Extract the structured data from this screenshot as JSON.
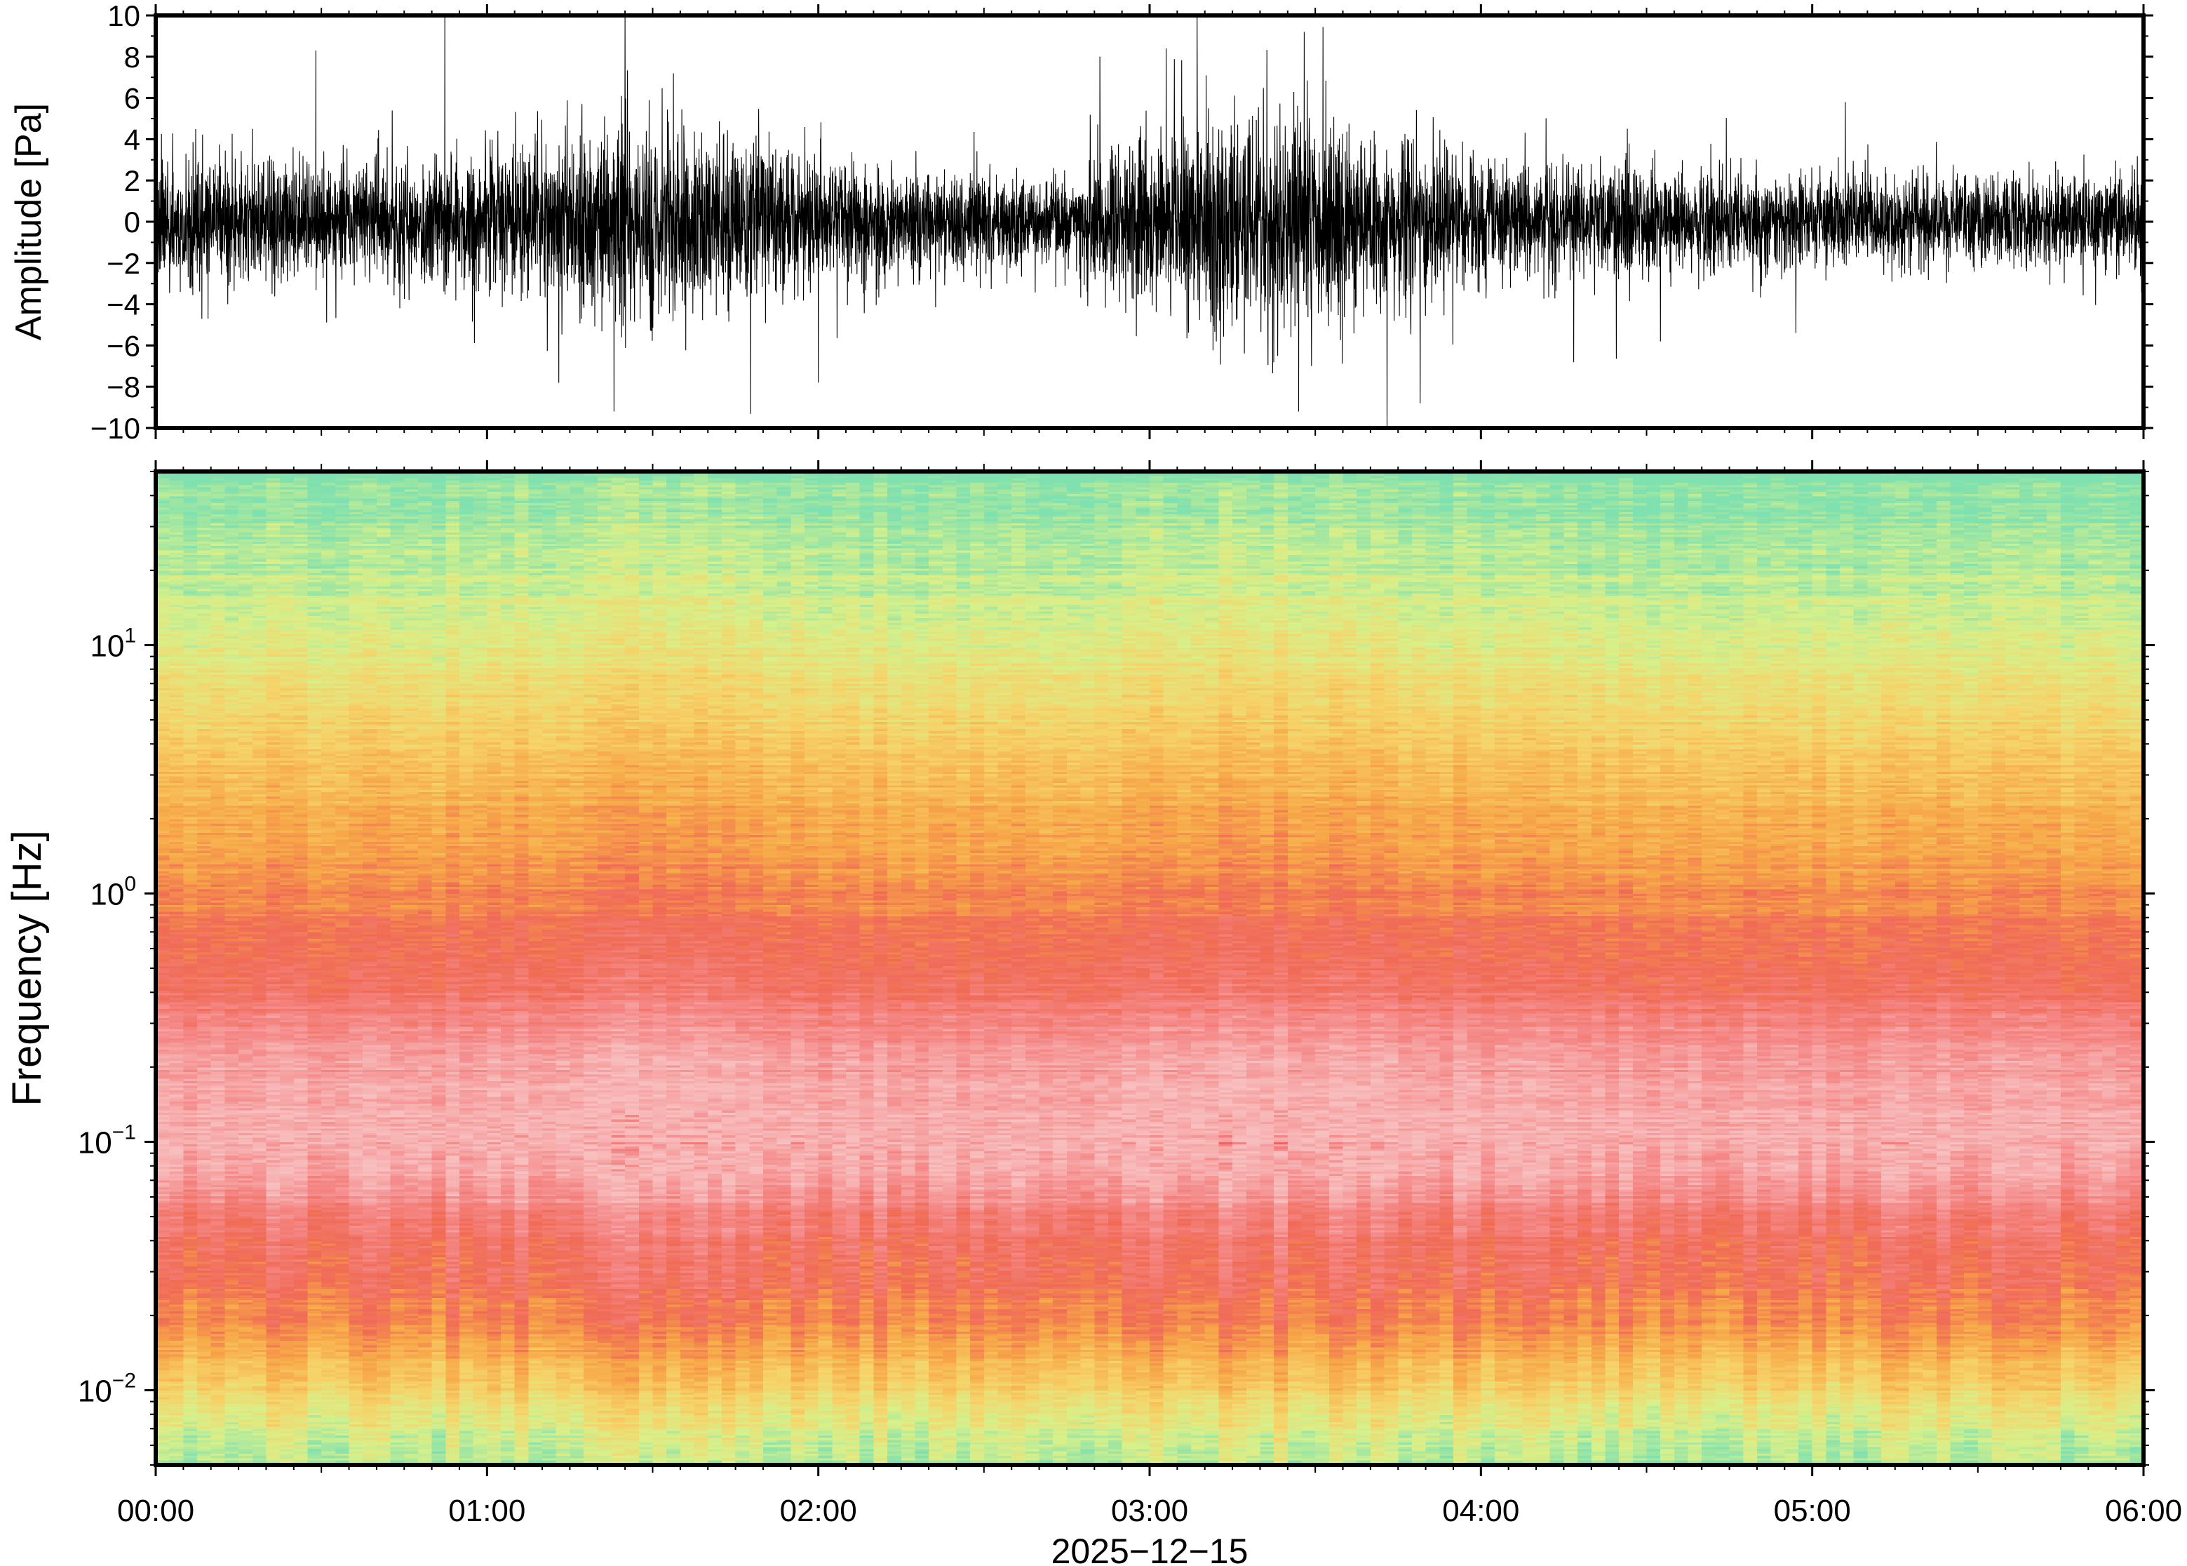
{
  "chart_data": [
    {
      "type": "line",
      "panel": "waveform",
      "ylabel": "Amplitude [Pa]",
      "ylim": [
        -10,
        10
      ],
      "yticks": [
        -10,
        -8,
        -6,
        -4,
        -2,
        0,
        2,
        4,
        6,
        8,
        10
      ],
      "ytick_labels": [
        "−10",
        "−8",
        "−6",
        "−4",
        "−2",
        "0",
        "2",
        "4",
        "6",
        "8",
        "10"
      ],
      "xlim": [
        "00:00",
        "06:00"
      ],
      "grid": false,
      "line_color": "#000000",
      "envelope": {
        "time": [
          "00:00",
          "00:15",
          "00:30",
          "00:45",
          "01:00",
          "01:15",
          "01:30",
          "01:45",
          "02:00",
          "02:15",
          "02:30",
          "02:45",
          "03:00",
          "03:15",
          "03:30",
          "03:45",
          "04:00",
          "04:15",
          "04:30",
          "04:45",
          "05:00",
          "05:15",
          "05:30",
          "05:45",
          "06:00"
        ],
        "typical_amplitude": [
          2.5,
          2.8,
          2.6,
          2.5,
          3.0,
          3.8,
          4.8,
          4.2,
          2.6,
          2.3,
          2.0,
          2.2,
          3.8,
          4.6,
          4.5,
          3.5,
          2.8,
          2.4,
          2.3,
          2.2,
          2.0,
          1.9,
          2.0,
          1.9,
          2.0
        ]
      },
      "peaks": [
        {
          "time": "00:29",
          "value": 8.3
        },
        {
          "time": "01:25",
          "value": 10.0
        },
        {
          "time": "01:23",
          "value": -9.2
        },
        {
          "time": "02:00",
          "value": -7.8
        },
        {
          "time": "02:51",
          "value": 8.0
        },
        {
          "time": "03:03",
          "value": 8.4
        },
        {
          "time": "03:28",
          "value": 9.2
        },
        {
          "time": "03:27",
          "value": -9.2
        },
        {
          "time": "03:43",
          "value": -10.0
        },
        {
          "time": "03:49",
          "value": -8.8
        },
        {
          "time": "05:06",
          "value": 5.8
        }
      ]
    },
    {
      "type": "heatmap",
      "panel": "spectrogram",
      "ylabel": "Frequency [Hz]",
      "xlabel": "2025−12−15",
      "y_scale": "log",
      "ylim": [
        0.005,
        50
      ],
      "yticks": [
        0.01,
        0.1,
        1,
        10
      ],
      "ytick_labels": [
        {
          "base": "10",
          "exp": "−2"
        },
        {
          "base": "10",
          "exp": "−1"
        },
        {
          "base": "10",
          "exp": "0"
        },
        {
          "base": "10",
          "exp": "1"
        }
      ],
      "x_ticks": [
        "00:00",
        "01:00",
        "02:00",
        "03:00",
        "04:00",
        "05:00",
        "06:00"
      ],
      "xlim": [
        "00:00",
        "06:00"
      ],
      "colormap": [
        "#7fe0b0",
        "#d8f08a",
        "#f6d268",
        "#f7a848",
        "#f06a55",
        "#f58a8a",
        "#f8c0c0",
        "#f05a5a",
        "#f39a45",
        "#f3c050",
        "#e8e080",
        "#7fe0b8",
        "#3fc0f0",
        "#1a7ce0",
        "#0a2ab0"
      ],
      "profile": {
        "frequency_hz": [
          0.005,
          0.008,
          0.012,
          0.018,
          0.025,
          0.04,
          0.07,
          0.1,
          0.15,
          0.25,
          0.4,
          0.6,
          1,
          1.6,
          2.5,
          4,
          6.3,
          10,
          16,
          25,
          40,
          50
        ],
        "color_level": [
          0.6,
          1.4,
          2.6,
          3.4,
          3.9,
          4.3,
          5.4,
          5.9,
          5.6,
          5.2,
          4.4,
          4.0,
          3.5,
          3.1,
          2.7,
          2.2,
          1.7,
          1.25,
          0.9,
          0.55,
          0.25,
          0.0
        ]
      }
    }
  ]
}
